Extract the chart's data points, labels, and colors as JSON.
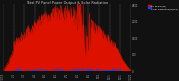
{
  "title": "Total PV Panel Power Output & Solar Radiation",
  "bg_color": "#111111",
  "plot_bg_color": "#111111",
  "grid_color": "#ffffff",
  "pv_color": "#dd1100",
  "radiation_color": "#0044ff",
  "legend_pv_label": "PV Power(W)",
  "legend_rad_label": "Solar Radiation(W/m2)",
  "n_points": 365,
  "pv_peak": 2800,
  "pv_peak_day": 172,
  "pv_sigma": 115,
  "ylim": [
    0,
    2800
  ],
  "x_tick_positions": [
    0,
    31,
    59,
    90,
    120,
    151,
    181,
    212,
    243,
    273,
    304,
    334,
    364
  ],
  "x_tick_labels": [
    "1/1/19",
    "2/1",
    "3/1",
    "4/1",
    "5/1",
    "6/1",
    "7/1",
    "8/1",
    "9/1",
    "10/1",
    "11/1",
    "12/1",
    "1/1/20"
  ],
  "y_tick_vals": [
    0,
    700,
    1400,
    2100,
    2800
  ],
  "y_tick_labels": [
    "0",
    "700",
    "1400",
    "2100",
    "2800"
  ],
  "seed": 0
}
